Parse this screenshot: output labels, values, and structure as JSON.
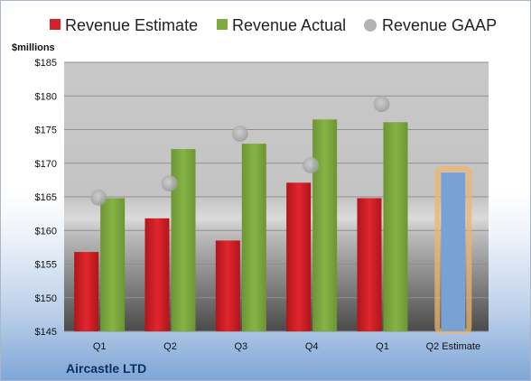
{
  "company": "Aircastle LTD",
  "colors": {
    "estimate": "#d42027",
    "actual": "#7faa3f",
    "gaap": "#b3b3b3",
    "forecast": "#7aa1d4",
    "forecast_glow": "#f0b46a",
    "company_text": "#0b2f66"
  },
  "chart_data": {
    "type": "bar",
    "unit_label": "$millions",
    "categories": [
      "Q1",
      "Q2",
      "Q3",
      "Q4",
      "Q1",
      "Q2 Estimate"
    ],
    "ylim": [
      145,
      185
    ],
    "yticks": [
      "$145",
      "$150",
      "$155",
      "$160",
      "$165",
      "$170",
      "$175",
      "$180",
      "$185"
    ],
    "ytick_values": [
      145,
      150,
      155,
      160,
      165,
      170,
      175,
      180,
      185
    ],
    "grid": true,
    "legend": {
      "position": "top",
      "entries": [
        "Revenue Estimate",
        "Revenue Actual",
        "Revenue GAAP"
      ]
    },
    "series": [
      {
        "name": "Revenue Estimate",
        "values": [
          156.8,
          161.8,
          158.5,
          167.1,
          164.8,
          168.6
        ]
      },
      {
        "name": "Revenue Actual",
        "values": [
          164.8,
          172.1,
          172.9,
          176.5,
          176.1,
          null
        ]
      },
      {
        "name": "Revenue GAAP",
        "values": [
          164.9,
          167.0,
          174.4,
          169.7,
          178.8,
          null
        ]
      }
    ]
  }
}
